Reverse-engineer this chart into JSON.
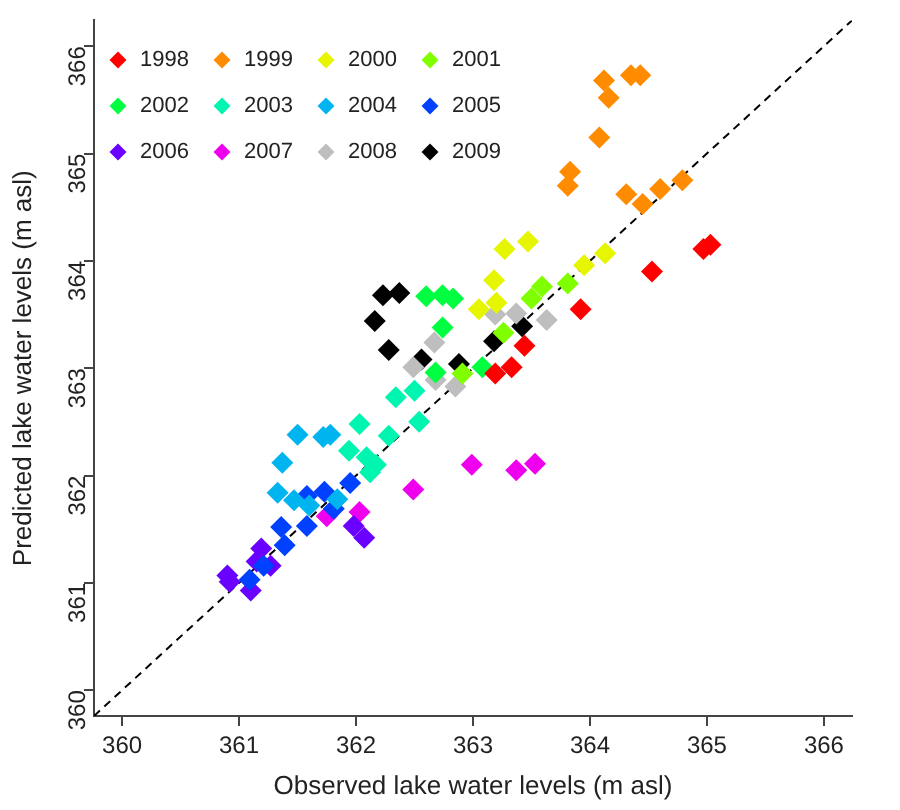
{
  "chart_data": {
    "type": "scatter",
    "xlabel": "Observed lake water levels (m asl)",
    "ylabel": "Predicted lake water levels (m asl)",
    "xlim": [
      359.76,
      366.24
    ],
    "ylim": [
      359.76,
      366.24
    ],
    "xticks": [
      360,
      361,
      362,
      363,
      364,
      365,
      366
    ],
    "yticks": [
      360,
      361,
      362,
      363,
      364,
      365,
      366
    ],
    "grid": false,
    "legend": "top left",
    "marker": "diamond",
    "series": [
      {
        "name": "1998",
        "color": "#ff0000",
        "x": [
          364.97,
          365.03,
          364.53,
          363.92,
          363.33,
          363.44,
          363.19
        ],
        "values": [
          364.11,
          364.15,
          363.9,
          363.55,
          363.01,
          363.21,
          362.95
        ]
      },
      {
        "name": "1999",
        "color": "#ff8c00",
        "x": [
          364.12,
          364.35,
          364.43,
          364.16,
          364.08,
          363.83,
          363.81,
          364.31,
          364.45,
          364.6,
          364.79
        ],
        "values": [
          365.68,
          365.73,
          365.73,
          365.52,
          365.15,
          364.83,
          364.7,
          364.62,
          364.53,
          364.67,
          364.75
        ]
      },
      {
        "name": "2000",
        "color": "#e6f500",
        "x": [
          363.27,
          363.47,
          363.18,
          363.05,
          363.2,
          363.95,
          364.13
        ],
        "values": [
          364.11,
          364.18,
          363.82,
          363.55,
          363.61,
          363.96,
          364.07
        ]
      },
      {
        "name": "2001",
        "color": "#7fff00",
        "x": [
          363.59,
          363.5,
          363.81,
          363.26,
          362.91
        ],
        "values": [
          363.76,
          363.65,
          363.79,
          363.33,
          362.95
        ]
      },
      {
        "name": "2002",
        "color": "#00ff40",
        "x": [
          362.6,
          362.74,
          362.83,
          362.74,
          362.68,
          363.08
        ],
        "values": [
          363.67,
          363.68,
          363.65,
          363.38,
          362.96,
          363.01
        ]
      },
      {
        "name": "2003",
        "color": "#00f5b0",
        "x": [
          362.34,
          362.5,
          362.03,
          362.28,
          362.54,
          361.94,
          362.09,
          362.17,
          362.12
        ],
        "values": [
          362.73,
          362.79,
          362.48,
          362.37,
          362.5,
          362.23,
          362.17,
          362.1,
          362.03
        ]
      },
      {
        "name": "2004",
        "color": "#00b4f0",
        "x": [
          361.5,
          361.72,
          361.78,
          361.37,
          361.33,
          361.47,
          361.6,
          361.84
        ],
        "values": [
          362.38,
          362.36,
          362.38,
          362.12,
          361.84,
          361.77,
          361.72,
          361.78
        ]
      },
      {
        "name": "2005",
        "color": "#0040ff",
        "x": [
          361.58,
          361.73,
          361.36,
          361.58,
          361.39,
          361.21,
          361.09,
          361.81,
          361.95
        ],
        "values": [
          361.81,
          361.85,
          361.52,
          361.53,
          361.35,
          361.16,
          361.03,
          361.69,
          361.93
        ]
      },
      {
        "name": "2006",
        "color": "#6a00ff",
        "x": [
          360.9,
          360.92,
          361.1,
          361.19,
          361.27,
          361.98,
          362.07,
          361.15
        ],
        "values": [
          361.07,
          361.01,
          360.93,
          361.32,
          361.16,
          361.53,
          361.42,
          361.2
        ]
      },
      {
        "name": "2007",
        "color": "#ee00ee",
        "x": [
          361.75,
          362.03,
          362.49,
          362.99,
          363.37,
          363.53
        ],
        "values": [
          361.62,
          361.66,
          361.87,
          362.1,
          362.05,
          362.11
        ]
      },
      {
        "name": "2008",
        "color": "#bebebe",
        "x": [
          362.67,
          362.49,
          362.68,
          362.85,
          363.19,
          363.37,
          363.63
        ],
        "values": [
          363.24,
          363.01,
          362.89,
          362.83,
          363.5,
          363.51,
          363.45
        ]
      },
      {
        "name": "2009",
        "color": "#000000",
        "x": [
          362.23,
          362.37,
          362.16,
          362.28,
          362.56,
          362.88,
          363.18,
          363.42
        ],
        "values": [
          363.68,
          363.7,
          363.44,
          363.17,
          363.08,
          363.04,
          363.25,
          363.39
        ]
      },
      {
        "type": "line",
        "color": "#000000",
        "line_style": "dashed",
        "marker": "none",
        "x": [
          359.76,
          366.24
        ],
        "values": [
          359.76,
          366.24
        ]
      }
    ]
  }
}
